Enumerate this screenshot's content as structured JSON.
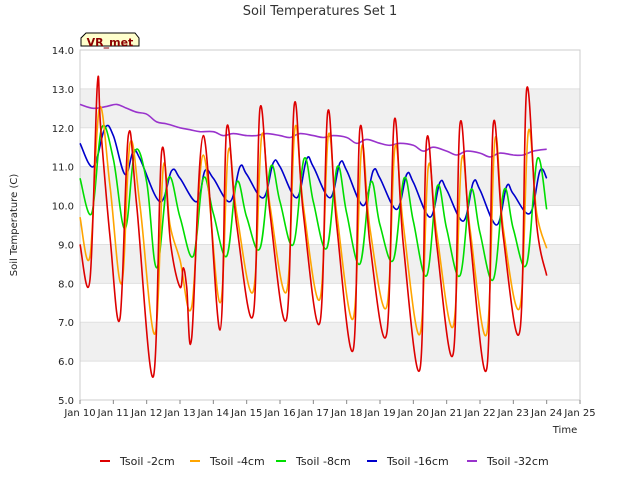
{
  "chart_data": {
    "type": "line",
    "title": "Soil Temperatures Set 1",
    "xlabel": "Time",
    "ylabel": "Soil Temperature (C)",
    "badge": "VR_met",
    "ylim": [
      5.0,
      14.0
    ],
    "xlim": [
      10,
      25
    ],
    "y_ticks": [
      "5.0",
      "6.0",
      "7.0",
      "8.0",
      "9.0",
      "10.0",
      "11.0",
      "12.0",
      "13.0",
      "14.0"
    ],
    "x_ticks": [
      "Jan 10",
      "Jan 11",
      "Jan 12",
      "Jan 13",
      "Jan 14",
      "Jan 15",
      "Jan 16",
      "Jan 17",
      "Jan 18",
      "Jan 19",
      "Jan 20",
      "Jan 21",
      "Jan 22",
      "Jan 23",
      "Jan 24",
      "Jan 25"
    ],
    "grid": "horizontal bands",
    "legend_position": "bottom",
    "series": [
      {
        "name": "Tsoil -2cm",
        "color": "#dd0000",
        "x": [
          10.0,
          10.3,
          10.52,
          10.62,
          10.9,
          11.2,
          11.45,
          11.7,
          12.2,
          12.45,
          12.72,
          13.0,
          13.1,
          13.2,
          13.35,
          13.7,
          14.2,
          14.4,
          14.7,
          15.2,
          15.4,
          15.7,
          16.2,
          16.43,
          16.7,
          17.2,
          17.43,
          17.7,
          18.2,
          18.4,
          18.7,
          19.2,
          19.43,
          19.7,
          20.2,
          20.4,
          20.7,
          21.2,
          21.4,
          21.7,
          22.2,
          22.4,
          22.7,
          23.2,
          23.4,
          23.7,
          24.0
        ],
        "values": [
          9.0,
          8.1,
          13.1,
          12.0,
          9.2,
          7.1,
          11.8,
          10.0,
          5.6,
          11.4,
          9.0,
          7.9,
          8.4,
          7.9,
          6.6,
          11.8,
          6.8,
          12.0,
          9.5,
          7.2,
          12.5,
          9.8,
          7.1,
          12.6,
          9.8,
          7.0,
          12.4,
          9.5,
          6.3,
          12.0,
          9.0,
          6.7,
          12.2,
          9.0,
          5.8,
          11.7,
          9.0,
          6.2,
          12.1,
          9.2,
          5.8,
          12.1,
          9.2,
          6.8,
          13.0,
          9.5,
          8.2
        ]
      },
      {
        "name": "Tsoil -4cm",
        "color": "#ffa500",
        "x": [
          10.0,
          10.3,
          10.58,
          10.9,
          11.25,
          11.5,
          11.8,
          12.25,
          12.5,
          12.7,
          13.0,
          13.35,
          13.7,
          14.2,
          14.45,
          14.7,
          15.2,
          15.45,
          15.7,
          16.2,
          16.45,
          16.7,
          17.2,
          17.45,
          17.7,
          18.2,
          18.45,
          18.7,
          19.2,
          19.45,
          19.7,
          20.2,
          20.45,
          20.7,
          21.2,
          21.45,
          21.7,
          22.2,
          22.45,
          22.7,
          23.2,
          23.45,
          23.7,
          24.0
        ],
        "values": [
          9.7,
          8.7,
          12.5,
          10.5,
          8.0,
          11.6,
          10.0,
          6.7,
          11.0,
          9.5,
          8.6,
          7.4,
          11.3,
          7.5,
          11.4,
          9.8,
          7.8,
          11.8,
          10.0,
          7.8,
          12.0,
          10.0,
          7.6,
          11.8,
          9.8,
          7.1,
          11.5,
          9.4,
          7.4,
          11.5,
          9.5,
          6.7,
          11.0,
          9.3,
          6.9,
          11.2,
          9.4,
          6.7,
          11.7,
          9.4,
          7.4,
          11.9,
          9.8,
          8.9
        ]
      },
      {
        "name": "Tsoil -8cm",
        "color": "#00dd00",
        "x": [
          10.0,
          10.35,
          10.65,
          11.0,
          11.35,
          11.65,
          12.0,
          12.3,
          12.65,
          13.0,
          13.4,
          13.7,
          14.0,
          14.4,
          14.7,
          15.0,
          15.4,
          15.72,
          16.0,
          16.4,
          16.72,
          17.0,
          17.4,
          17.72,
          18.0,
          18.4,
          18.72,
          19.0,
          19.4,
          19.72,
          20.0,
          20.4,
          20.72,
          21.0,
          21.4,
          21.72,
          22.0,
          22.4,
          22.72,
          23.0,
          23.4,
          23.72,
          24.0
        ],
        "values": [
          10.7,
          9.8,
          12.0,
          11.2,
          9.4,
          11.4,
          10.6,
          8.4,
          10.7,
          9.7,
          8.7,
          10.7,
          9.8,
          8.7,
          10.6,
          9.7,
          8.9,
          11.0,
          10.1,
          9.0,
          11.2,
          10.1,
          8.9,
          11.0,
          9.8,
          8.5,
          10.6,
          9.5,
          8.6,
          10.7,
          9.6,
          8.2,
          10.5,
          9.4,
          8.2,
          10.4,
          9.3,
          8.1,
          10.4,
          9.4,
          8.5,
          11.2,
          9.9
        ]
      },
      {
        "name": "Tsoil -16cm",
        "color": "#0000cc",
        "x": [
          10.0,
          10.4,
          10.75,
          11.0,
          11.35,
          11.6,
          11.8,
          12.4,
          12.75,
          13.0,
          13.5,
          13.75,
          14.0,
          14.5,
          14.8,
          15.0,
          15.5,
          15.8,
          16.0,
          16.5,
          16.8,
          17.0,
          17.5,
          17.8,
          18.0,
          18.5,
          18.8,
          19.0,
          19.5,
          19.8,
          20.0,
          20.5,
          20.8,
          21.0,
          21.5,
          21.8,
          22.0,
          22.5,
          22.8,
          23.0,
          23.5,
          23.8,
          24.0
        ],
        "values": [
          11.6,
          11.0,
          12.0,
          11.8,
          10.8,
          11.4,
          11.2,
          10.1,
          10.9,
          10.7,
          10.1,
          10.9,
          10.7,
          10.1,
          11.0,
          10.8,
          10.2,
          11.1,
          11.0,
          10.2,
          11.2,
          11.0,
          10.2,
          11.1,
          10.9,
          10.0,
          10.9,
          10.7,
          9.9,
          10.8,
          10.6,
          9.7,
          10.6,
          10.4,
          9.6,
          10.6,
          10.4,
          9.5,
          10.5,
          10.3,
          9.8,
          10.9,
          10.7
        ]
      },
      {
        "name": "Tsoil -32cm",
        "color": "#9933cc",
        "x": [
          10.0,
          10.4,
          10.8,
          11.1,
          11.4,
          11.7,
          12.0,
          12.3,
          12.6,
          13.0,
          13.3,
          13.6,
          14.0,
          14.3,
          14.6,
          15.0,
          15.3,
          15.6,
          16.0,
          16.3,
          16.6,
          17.0,
          17.3,
          17.6,
          18.0,
          18.3,
          18.6,
          19.0,
          19.3,
          19.6,
          20.0,
          20.3,
          20.6,
          21.0,
          21.3,
          21.6,
          22.0,
          22.3,
          22.6,
          23.0,
          23.3,
          23.6,
          24.0
        ],
        "values": [
          12.6,
          12.5,
          12.55,
          12.6,
          12.5,
          12.4,
          12.35,
          12.15,
          12.1,
          12.0,
          11.95,
          11.9,
          11.9,
          11.8,
          11.85,
          11.8,
          11.8,
          11.85,
          11.8,
          11.75,
          11.85,
          11.8,
          11.75,
          11.8,
          11.75,
          11.6,
          11.7,
          11.6,
          11.55,
          11.6,
          11.55,
          11.4,
          11.5,
          11.4,
          11.3,
          11.4,
          11.35,
          11.25,
          11.35,
          11.3,
          11.3,
          11.4,
          11.45
        ]
      }
    ]
  }
}
